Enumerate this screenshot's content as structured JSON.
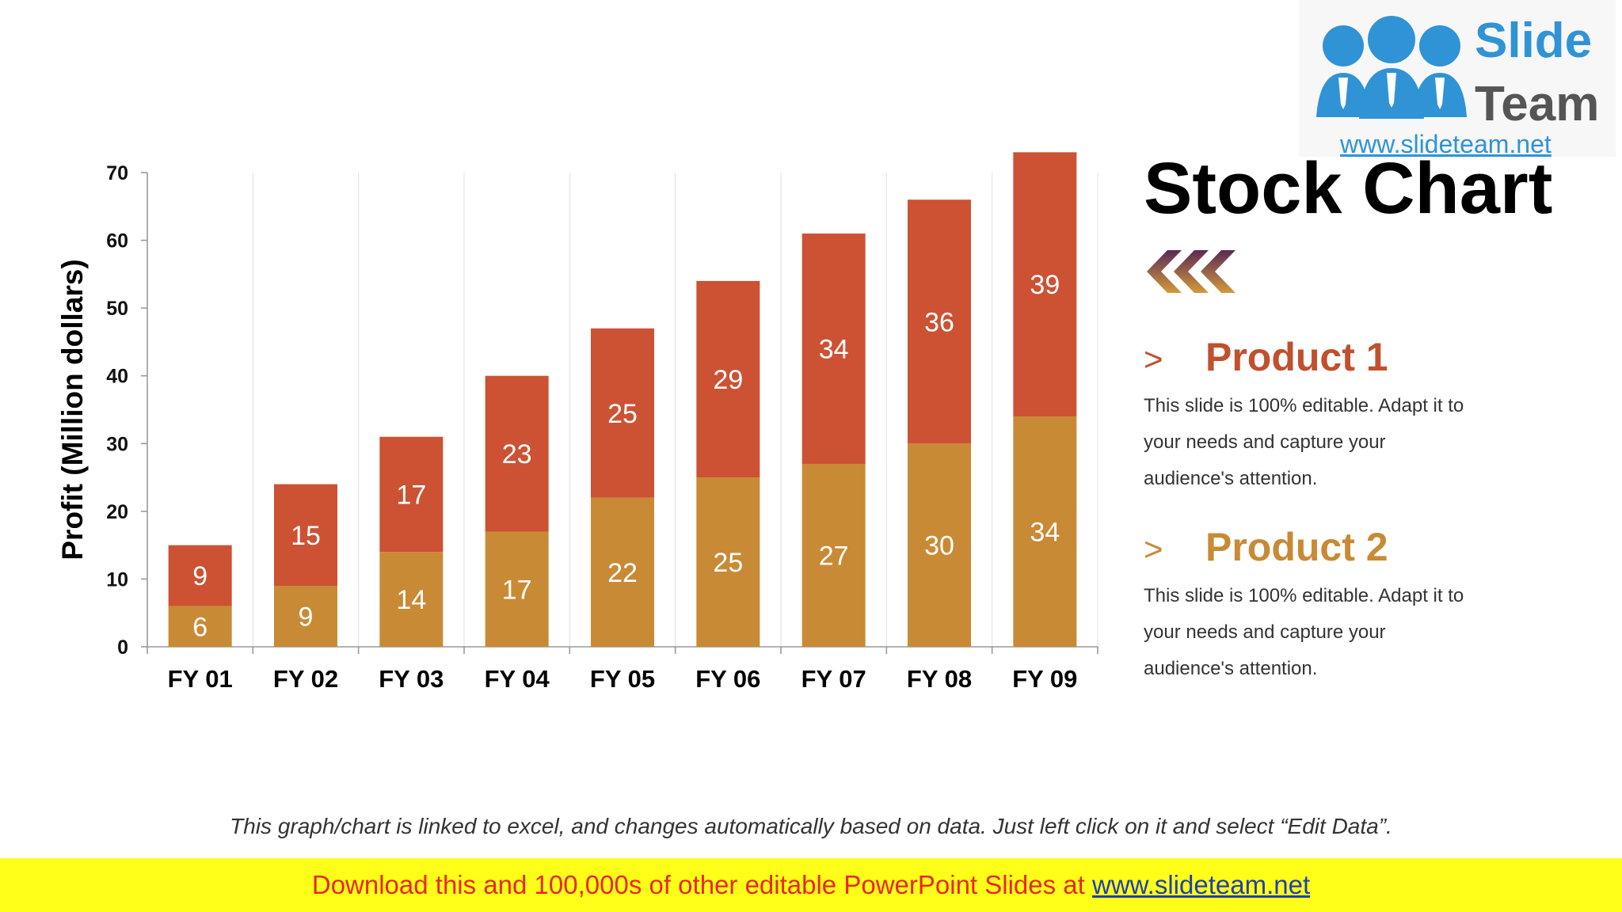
{
  "chart_data": {
    "type": "bar",
    "stacked": true,
    "categories": [
      "FY 01",
      "FY 02",
      "FY 03",
      "FY 04",
      "FY 05",
      "FY 06",
      "FY 07",
      "FY 08",
      "FY 09"
    ],
    "series": [
      {
        "name": "Product 2",
        "color": "#c98a35",
        "values": [
          6,
          9,
          14,
          17,
          22,
          25,
          27,
          30,
          34
        ]
      },
      {
        "name": "Product 1",
        "color": "#cc5233",
        "values": [
          9,
          15,
          17,
          23,
          25,
          29,
          34,
          36,
          39
        ]
      }
    ],
    "ylabel": "Profit  (Million dollars)",
    "ylim": [
      0,
      70
    ],
    "yticks": [
      0,
      10,
      20,
      30,
      40,
      50,
      60,
      70
    ],
    "grid": "vertical",
    "data_labels": true
  },
  "logo": {
    "line1": "Slide",
    "line2": "Team",
    "url": "www.slideteam.net",
    "people_color": "#2f93d6"
  },
  "title": "Stock Chart",
  "products": [
    {
      "marker": ">",
      "name": "Product 1",
      "color": "#c0502e",
      "desc": "This slide is 100% editable. Adapt it to your needs and capture your audience's attention."
    },
    {
      "marker": ">",
      "name": "Product 2",
      "color": "#c98a35",
      "desc": "This slide is 100% editable. Adapt it to your needs and capture your audience's attention."
    }
  ],
  "note": "This graph/chart is linked to excel, and changes automatically based on data. Just left click on it and select “Edit Data”.",
  "banner": {
    "text": "Download this and 100,000s of other editable PowerPoint Slides at ",
    "link": "www.slideteam.net",
    "bg_color": "#ffff1a",
    "text_color": "#e8281e",
    "link_color": "#1f3fae"
  }
}
